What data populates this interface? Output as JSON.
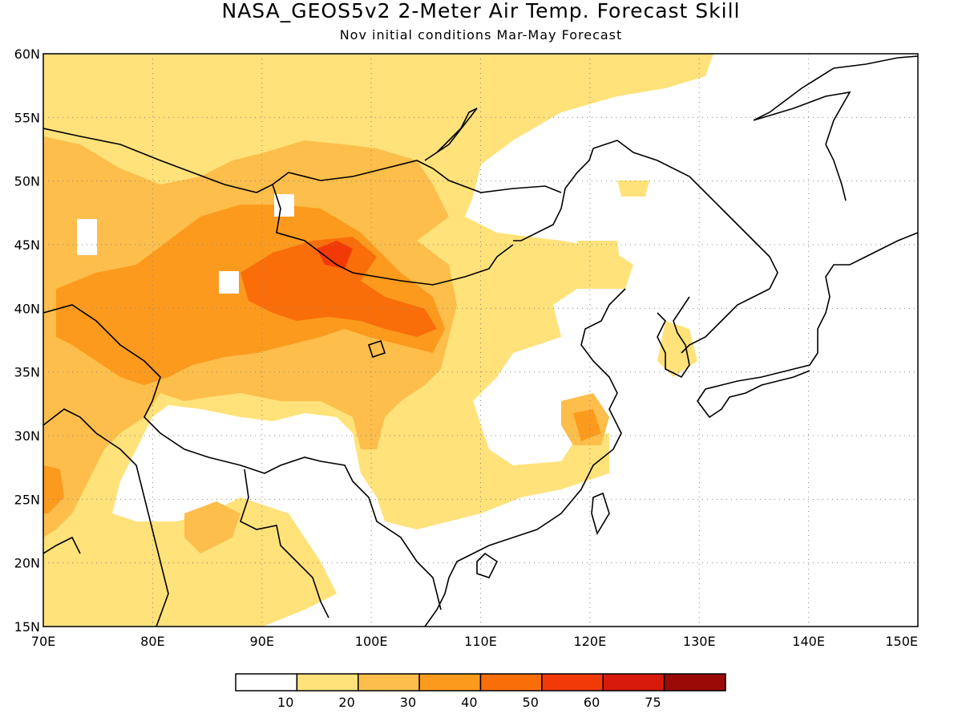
{
  "title": "NASA_GEOS5v2 2-Meter Air Temp. Forecast Skill",
  "subtitle": "Nov initial conditions  Mar-May Forecast",
  "map": {
    "lon_range": [
      70,
      150
    ],
    "lat_range": [
      15,
      60
    ],
    "lat_ticks": [
      "15N",
      "20N",
      "25N",
      "30N",
      "35N",
      "40N",
      "45N",
      "50N",
      "55N",
      "60N"
    ],
    "lon_ticks": [
      "70E",
      "80E",
      "90E",
      "100E",
      "110E",
      "120E",
      "130E",
      "140E",
      "150E"
    ],
    "grid": "dotted"
  },
  "colorbar": {
    "colors": [
      "#ffffff",
      "#ffe27a",
      "#fdbe4b",
      "#fc9a1d",
      "#fa6e0a",
      "#f23a08",
      "#d81a0c",
      "#9a0a06"
    ],
    "labels": [
      "10",
      "20",
      "30",
      "40",
      "50",
      "60",
      "75"
    ]
  }
}
